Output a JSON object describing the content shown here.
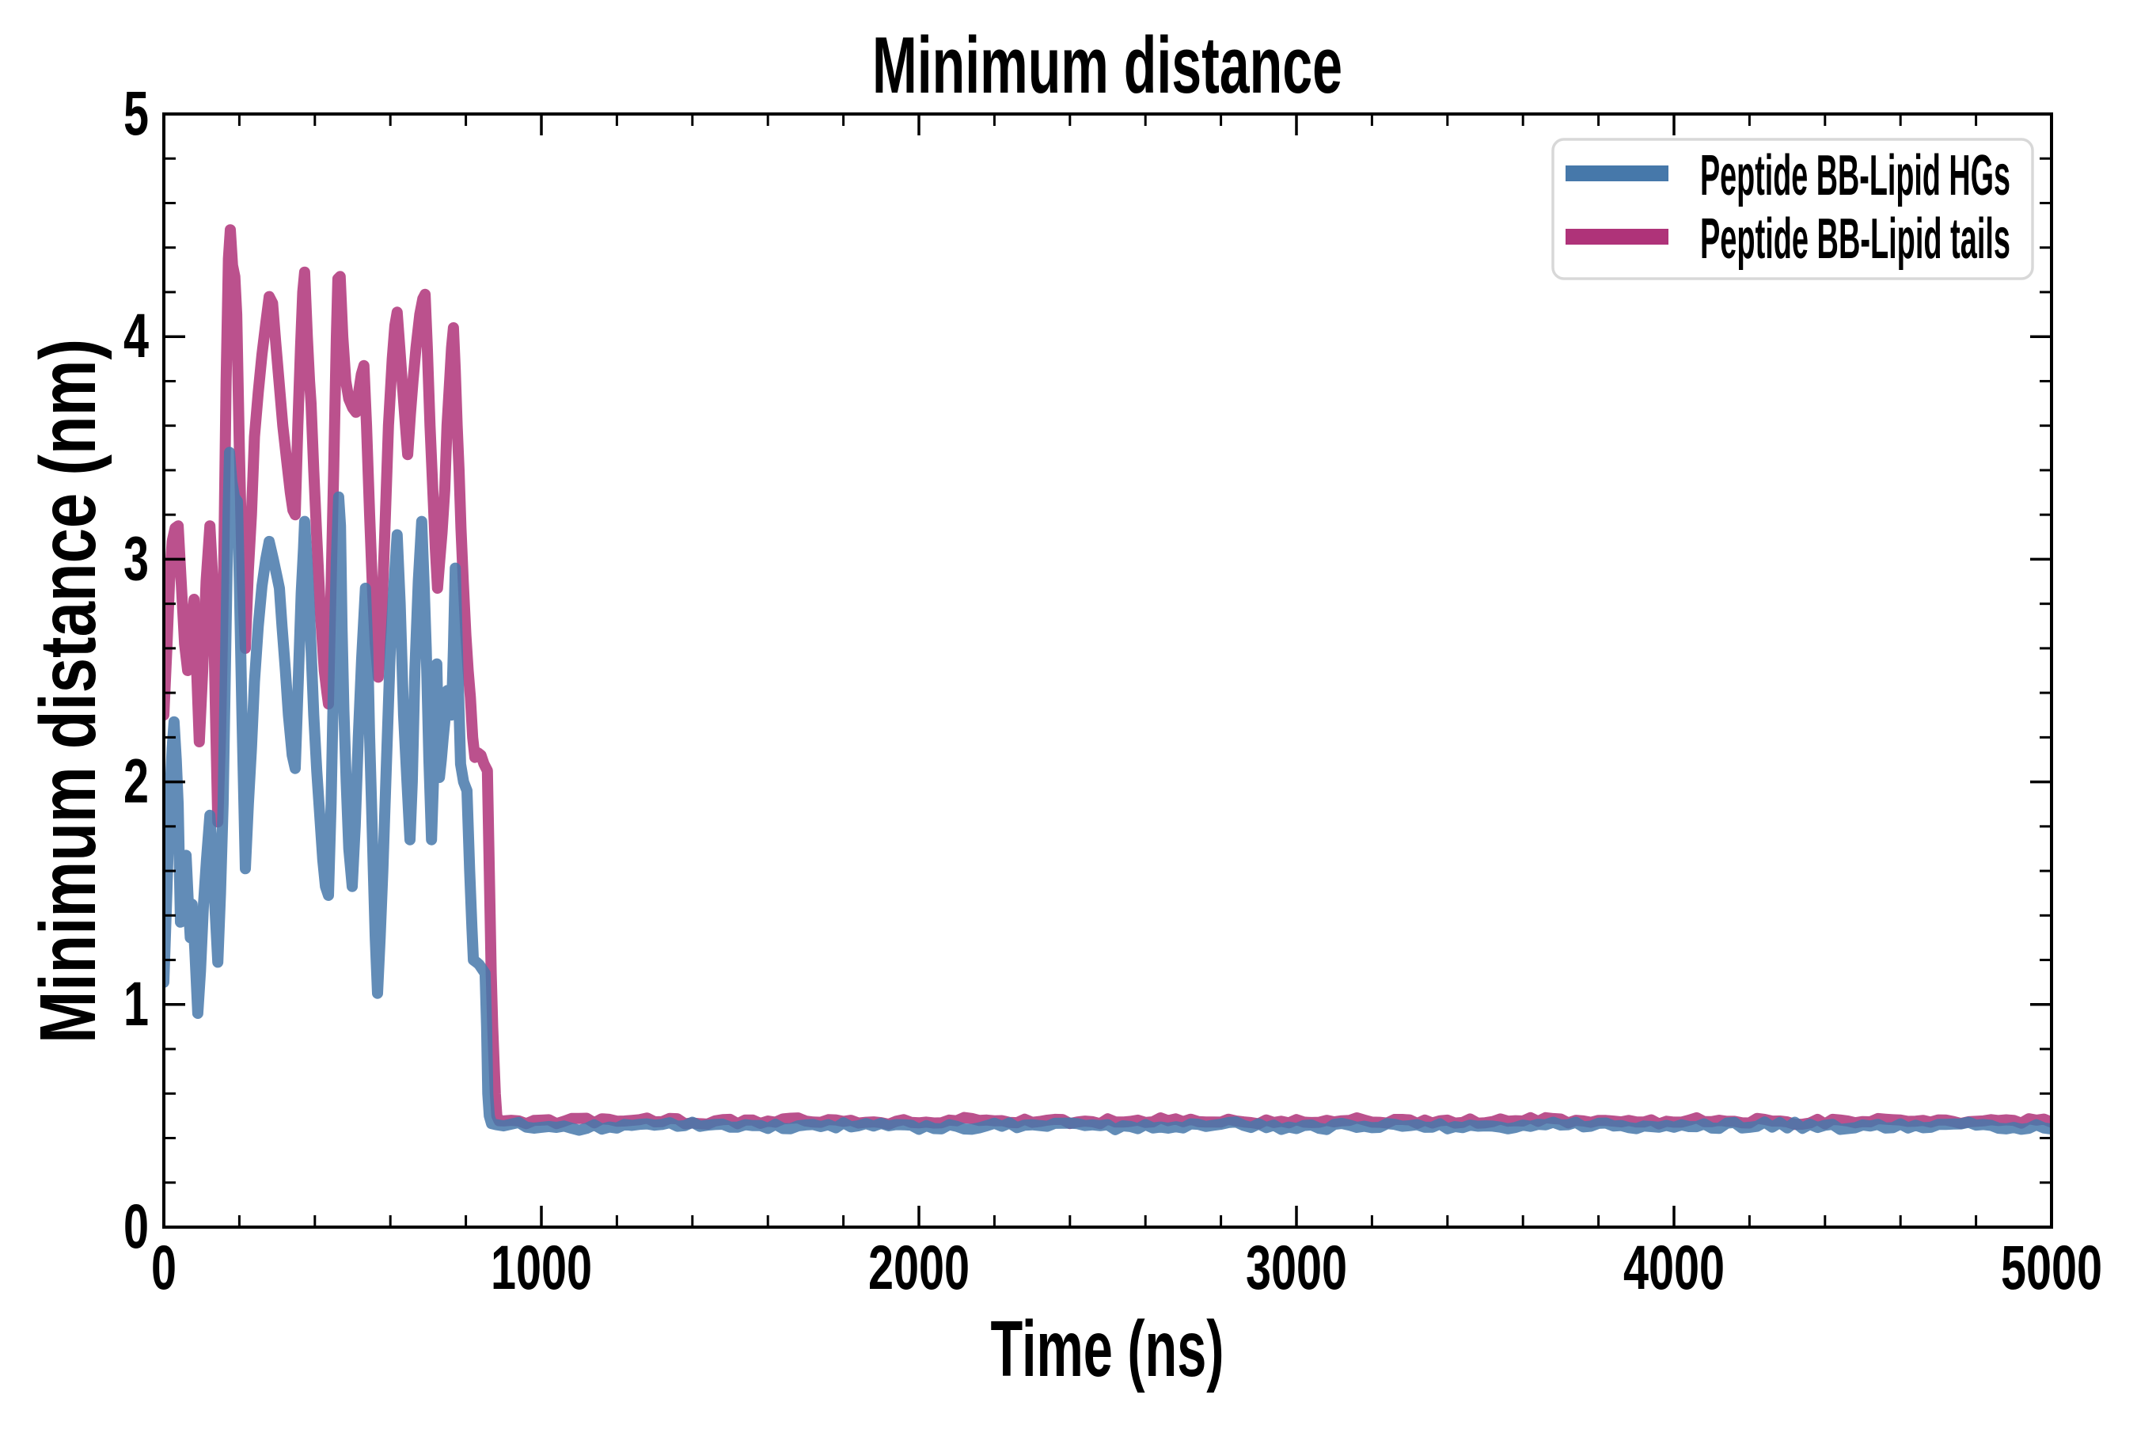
{
  "figure": {
    "title": "Minimum distance",
    "xlabel": "Time (ns)",
    "ylabel": "Minimum distance (nm)"
  },
  "legend": {
    "position": "upper right",
    "items": [
      {
        "label": "Peptide BB-Lipid HGs",
        "color": "#4678aa"
      },
      {
        "label": "Peptide BB-Lipid tails",
        "color": "#af3379"
      }
    ]
  },
  "chart_data": {
    "type": "line",
    "title": "Minimum distance",
    "xlabel": "Time (ns)",
    "ylabel": "Minimum distance (nm)",
    "xlim": [
      0,
      5000
    ],
    "ylim": [
      0,
      5
    ],
    "xticks": [
      0,
      1000,
      2000,
      3000,
      4000,
      5000
    ],
    "yticks": [
      0,
      1,
      2,
      3,
      4,
      5
    ],
    "x_minor_step": 200,
    "y_minor_step": 0.2,
    "grid": false,
    "legend_position": "upper right",
    "line_width": 14,
    "line_opacity": 0.85,
    "series": [
      {
        "name": "Peptide BB-Lipid HGs",
        "color": "#4678aa",
        "points": [
          [
            0,
            1.1
          ],
          [
            8,
            1.5
          ],
          [
            15,
            1.9
          ],
          [
            22,
            2.15
          ],
          [
            27,
            2.27
          ],
          [
            33,
            2.1
          ],
          [
            38,
            1.9
          ],
          [
            44,
            1.37
          ],
          [
            50,
            1.5
          ],
          [
            55,
            1.62
          ],
          [
            59,
            1.67
          ],
          [
            65,
            1.45
          ],
          [
            70,
            1.3
          ],
          [
            75,
            1.45
          ],
          [
            82,
            1.25
          ],
          [
            90,
            0.96
          ],
          [
            97,
            1.15
          ],
          [
            105,
            1.45
          ],
          [
            113,
            1.65
          ],
          [
            122,
            1.85
          ],
          [
            128,
            1.7
          ],
          [
            135,
            1.45
          ],
          [
            143,
            1.19
          ],
          [
            150,
            1.5
          ],
          [
            157,
            1.9
          ],
          [
            164,
            2.6
          ],
          [
            170,
            3.2
          ],
          [
            174,
            3.48
          ],
          [
            180,
            3.35
          ],
          [
            187,
            3.28
          ],
          [
            195,
            3.26
          ],
          [
            200,
            2.9
          ],
          [
            207,
            2.3
          ],
          [
            216,
            1.61
          ],
          [
            224,
            1.9
          ],
          [
            232,
            2.15
          ],
          [
            240,
            2.45
          ],
          [
            250,
            2.7
          ],
          [
            260,
            2.88
          ],
          [
            270,
            3.0
          ],
          [
            279,
            3.08
          ],
          [
            290,
            3.0
          ],
          [
            300,
            2.92
          ],
          [
            306,
            2.87
          ],
          [
            313,
            2.7
          ],
          [
            322,
            2.5
          ],
          [
            330,
            2.3
          ],
          [
            340,
            2.12
          ],
          [
            348,
            2.06
          ],
          [
            356,
            2.45
          ],
          [
            364,
            2.85
          ],
          [
            370,
            3.05
          ],
          [
            373,
            3.17
          ],
          [
            379,
            3.0
          ],
          [
            385,
            2.8
          ],
          [
            390,
            2.6
          ],
          [
            397,
            2.3
          ],
          [
            405,
            2.05
          ],
          [
            413,
            1.85
          ],
          [
            421,
            1.65
          ],
          [
            428,
            1.53
          ],
          [
            436,
            1.49
          ],
          [
            443,
            1.9
          ],
          [
            450,
            2.5
          ],
          [
            457,
            3.0
          ],
          [
            463,
            3.28
          ],
          [
            468,
            3.15
          ],
          [
            472,
            2.7
          ],
          [
            477,
            2.32
          ],
          [
            483,
            2.0
          ],
          [
            490,
            1.7
          ],
          [
            499,
            1.53
          ],
          [
            507,
            1.8
          ],
          [
            515,
            2.2
          ],
          [
            524,
            2.55
          ],
          [
            534,
            2.87
          ],
          [
            540,
            2.6
          ],
          [
            545,
            2.2
          ],
          [
            550,
            1.9
          ],
          [
            555,
            1.6
          ],
          [
            560,
            1.3
          ],
          [
            566,
            1.05
          ],
          [
            573,
            1.3
          ],
          [
            580,
            1.6
          ],
          [
            590,
            2.1
          ],
          [
            600,
            2.6
          ],
          [
            610,
            2.9
          ],
          [
            618,
            3.11
          ],
          [
            626,
            2.8
          ],
          [
            635,
            2.3
          ],
          [
            644,
            2.0
          ],
          [
            652,
            1.74
          ],
          [
            658,
            2.0
          ],
          [
            665,
            2.5
          ],
          [
            674,
            2.9
          ],
          [
            683,
            3.17
          ],
          [
            689,
            2.9
          ],
          [
            695,
            2.6
          ],
          [
            702,
            2.1
          ],
          [
            709,
            1.74
          ],
          [
            714,
            2.0
          ],
          [
            718,
            2.2
          ],
          [
            723,
            2.53
          ],
          [
            727,
            2.2
          ],
          [
            730,
            2.02
          ],
          [
            735,
            2.1
          ],
          [
            740,
            2.2
          ],
          [
            746,
            2.3
          ],
          [
            751,
            2.41
          ],
          [
            757,
            2.35
          ],
          [
            762,
            2.3
          ],
          [
            767,
            2.6
          ],
          [
            772,
            2.96
          ],
          [
            779,
            2.5
          ],
          [
            786,
            2.08
          ],
          [
            794,
            2.0
          ],
          [
            803,
            1.96
          ],
          [
            810,
            1.6
          ],
          [
            816,
            1.35
          ],
          [
            820,
            1.2
          ],
          [
            828,
            1.19
          ],
          [
            835,
            1.18
          ],
          [
            843,
            1.16
          ],
          [
            851,
            1.14
          ],
          [
            855,
            0.9
          ],
          [
            858,
            0.6
          ],
          [
            862,
            0.5
          ],
          [
            868,
            0.465
          ],
          [
            880,
            0.46
          ],
          [
            900,
            0.455
          ]
        ],
        "flat_tail": {
          "from": 920,
          "to": 5000,
          "step": 20,
          "base": 0.455,
          "noise_amp": 0.014,
          "seed": 3
        }
      },
      {
        "name": "Peptide BB-Lipid tails",
        "color": "#af3379",
        "points": [
          [
            0,
            2.3
          ],
          [
            8,
            2.6
          ],
          [
            15,
            2.9
          ],
          [
            22,
            3.08
          ],
          [
            30,
            3.14
          ],
          [
            38,
            3.15
          ],
          [
            46,
            2.9
          ],
          [
            55,
            2.62
          ],
          [
            63,
            2.5
          ],
          [
            72,
            2.68
          ],
          [
            80,
            2.82
          ],
          [
            87,
            2.5
          ],
          [
            94,
            2.18
          ],
          [
            103,
            2.5
          ],
          [
            112,
            2.9
          ],
          [
            122,
            3.15
          ],
          [
            130,
            2.9
          ],
          [
            137,
            2.3
          ],
          [
            143,
            1.82
          ],
          [
            150,
            2.2
          ],
          [
            158,
            2.9
          ],
          [
            165,
            3.8
          ],
          [
            171,
            4.35
          ],
          [
            176,
            4.48
          ],
          [
            182,
            4.32
          ],
          [
            188,
            4.27
          ],
          [
            193,
            4.1
          ],
          [
            200,
            3.5
          ],
          [
            208,
            2.9
          ],
          [
            216,
            2.6
          ],
          [
            224,
            2.95
          ],
          [
            232,
            3.2
          ],
          [
            240,
            3.55
          ],
          [
            250,
            3.75
          ],
          [
            260,
            3.92
          ],
          [
            270,
            4.06
          ],
          [
            279,
            4.18
          ],
          [
            288,
            4.15
          ],
          [
            296,
            3.98
          ],
          [
            305,
            3.8
          ],
          [
            315,
            3.6
          ],
          [
            325,
            3.45
          ],
          [
            335,
            3.3
          ],
          [
            342,
            3.22
          ],
          [
            348,
            3.2
          ],
          [
            355,
            3.6
          ],
          [
            362,
            3.95
          ],
          [
            368,
            4.2
          ],
          [
            373,
            4.29
          ],
          [
            380,
            4.0
          ],
          [
            386,
            3.8
          ],
          [
            390,
            3.7
          ],
          [
            397,
            3.4
          ],
          [
            405,
            3.1
          ],
          [
            415,
            2.75
          ],
          [
            425,
            2.5
          ],
          [
            432,
            2.4
          ],
          [
            436,
            2.35
          ],
          [
            442,
            2.8
          ],
          [
            450,
            3.4
          ],
          [
            457,
            4.0
          ],
          [
            461,
            4.26
          ],
          [
            467,
            4.27
          ],
          [
            474,
            4.0
          ],
          [
            482,
            3.8
          ],
          [
            490,
            3.72
          ],
          [
            500,
            3.68
          ],
          [
            509,
            3.66
          ],
          [
            516,
            3.75
          ],
          [
            523,
            3.83
          ],
          [
            530,
            3.87
          ],
          [
            537,
            3.6
          ],
          [
            545,
            3.2
          ],
          [
            553,
            2.85
          ],
          [
            560,
            2.62
          ],
          [
            568,
            2.47
          ],
          [
            576,
            2.7
          ],
          [
            585,
            3.1
          ],
          [
            595,
            3.6
          ],
          [
            605,
            3.9
          ],
          [
            612,
            4.05
          ],
          [
            618,
            4.11
          ],
          [
            625,
            3.95
          ],
          [
            632,
            3.78
          ],
          [
            640,
            3.6
          ],
          [
            646,
            3.47
          ],
          [
            653,
            3.65
          ],
          [
            660,
            3.8
          ],
          [
            668,
            3.95
          ],
          [
            678,
            4.1
          ],
          [
            686,
            4.17
          ],
          [
            692,
            4.19
          ],
          [
            698,
            3.95
          ],
          [
            705,
            3.6
          ],
          [
            713,
            3.29
          ],
          [
            719,
            3.05
          ],
          [
            725,
            2.87
          ],
          [
            731,
            3.0
          ],
          [
            737,
            3.12
          ],
          [
            744,
            3.31
          ],
          [
            750,
            3.6
          ],
          [
            757,
            3.8
          ],
          [
            762,
            3.95
          ],
          [
            767,
            4.04
          ],
          [
            772,
            3.85
          ],
          [
            777,
            3.6
          ],
          [
            782,
            3.4
          ],
          [
            787,
            3.14
          ],
          [
            793,
            2.9
          ],
          [
            800,
            2.66
          ],
          [
            806,
            2.5
          ],
          [
            812,
            2.38
          ],
          [
            818,
            2.2
          ],
          [
            824,
            2.11
          ],
          [
            832,
            2.13
          ],
          [
            840,
            2.12
          ],
          [
            848,
            2.08
          ],
          [
            857,
            2.05
          ],
          [
            862,
            1.6
          ],
          [
            867,
            1.14
          ],
          [
            871,
            0.9
          ],
          [
            874,
            0.77
          ],
          [
            878,
            0.6
          ],
          [
            882,
            0.5
          ],
          [
            888,
            0.478
          ],
          [
            900,
            0.477
          ]
        ],
        "flat_tail": {
          "from": 920,
          "to": 5000,
          "step": 20,
          "base": 0.477,
          "noise_amp": 0.012,
          "seed": 11
        }
      }
    ]
  }
}
